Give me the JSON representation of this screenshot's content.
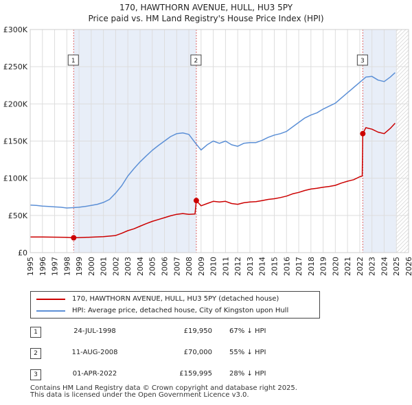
{
  "title_line1": "170, HAWTHORN AVENUE, HULL, HU3 5PY",
  "title_line2": "Price paid vs. HM Land Registry's House Price Index (HPI)",
  "colors": {
    "price_paid": "#cc0000",
    "hpi": "#5b8fd6",
    "shade": "#e8eef8",
    "vline": "#e06666"
  },
  "chart_data": {
    "type": "line",
    "title": "170, HAWTHORN AVENUE, HULL, HU3 5PY — Price paid vs. HM Land Registry's House Price Index (HPI)",
    "xlim": [
      1995,
      2026
    ],
    "ylim": [
      0,
      300000
    ],
    "x_ticks": [
      "1995",
      "1996",
      "1997",
      "1998",
      "1999",
      "2000",
      "2001",
      "2002",
      "2003",
      "2004",
      "2005",
      "2006",
      "2007",
      "2008",
      "2009",
      "2010",
      "2011",
      "2012",
      "2013",
      "2014",
      "2015",
      "2016",
      "2017",
      "2018",
      "2019",
      "2020",
      "2021",
      "2022",
      "2023",
      "2024",
      "2025",
      "2026"
    ],
    "y_ticks": [
      {
        "value": 0,
        "label": "£0"
      },
      {
        "value": 50000,
        "label": "£50K"
      },
      {
        "value": 100000,
        "label": "£100K"
      },
      {
        "value": 150000,
        "label": "£150K"
      },
      {
        "value": 200000,
        "label": "£200K"
      },
      {
        "value": 250000,
        "label": "£250K"
      },
      {
        "value": 300000,
        "label": "£300K"
      }
    ],
    "shaded_ranges": [
      [
        1998.56,
        2008.61
      ],
      [
        2022.25,
        2024.97
      ]
    ],
    "hatched_range": [
      2024.97,
      2026
    ],
    "series": [
      {
        "name": "HPI: Average price, detached house, City of Kingston upon Hull",
        "x": [
          1995.0,
          1995.5,
          1996.0,
          1996.5,
          1997.0,
          1997.5,
          1998.0,
          1998.5,
          1999.0,
          1999.5,
          2000.0,
          2000.5,
          2001.0,
          2001.5,
          2002.0,
          2002.5,
          2003.0,
          2003.5,
          2004.0,
          2004.5,
          2005.0,
          2005.5,
          2006.0,
          2006.5,
          2007.0,
          2007.5,
          2008.0,
          2008.5,
          2009.0,
          2009.5,
          2010.0,
          2010.5,
          2011.0,
          2011.5,
          2012.0,
          2012.5,
          2013.0,
          2013.5,
          2014.0,
          2014.5,
          2015.0,
          2015.5,
          2016.0,
          2016.5,
          2017.0,
          2017.5,
          2018.0,
          2018.5,
          2019.0,
          2019.5,
          2020.0,
          2020.5,
          2021.0,
          2021.5,
          2022.0,
          2022.5,
          2023.0,
          2023.5,
          2024.0,
          2024.5,
          2024.9
        ],
        "values": [
          64000,
          63500,
          62500,
          62000,
          61500,
          61000,
          60000,
          60500,
          61000,
          62000,
          63500,
          65000,
          67500,
          71500,
          80000,
          90000,
          103000,
          113000,
          122000,
          130000,
          137500,
          144000,
          150000,
          156000,
          160000,
          161000,
          159000,
          148000,
          138000,
          145000,
          150000,
          147000,
          150000,
          145000,
          143000,
          147000,
          148000,
          148000,
          151000,
          155000,
          158000,
          160000,
          163000,
          169000,
          175000,
          181000,
          185000,
          188000,
          193000,
          197000,
          201000,
          208000,
          215000,
          222000,
          229000,
          236000,
          237000,
          232000,
          230000,
          236000,
          242000
        ]
      },
      {
        "name": "170, HAWTHORN AVENUE, HULL, HU3 5PY (detached house)",
        "x": [
          1995.0,
          1996.0,
          1997.0,
          1998.0,
          1998.56,
          1999.0,
          2000.0,
          2001.0,
          2002.0,
          2002.5,
          2003.0,
          2003.5,
          2004.0,
          2004.5,
          2005.0,
          2005.5,
          2006.0,
          2006.5,
          2007.0,
          2007.5,
          2008.0,
          2008.5,
          2008.61,
          2009.0,
          2009.5,
          2010.0,
          2010.5,
          2011.0,
          2011.5,
          2012.0,
          2012.5,
          2013.0,
          2013.5,
          2014.0,
          2014.5,
          2015.0,
          2015.5,
          2016.0,
          2016.5,
          2017.0,
          2017.5,
          2018.0,
          2018.5,
          2019.0,
          2019.5,
          2020.0,
          2020.5,
          2021.0,
          2021.5,
          2022.0,
          2022.2,
          2022.25,
          2022.5,
          2023.0,
          2023.5,
          2024.0,
          2024.5,
          2024.9
        ],
        "values": [
          21000,
          21000,
          20800,
          20500,
          19950,
          20200,
          20800,
          21500,
          23000,
          26000,
          29500,
          32000,
          35500,
          39000,
          42000,
          44500,
          47000,
          49500,
          51500,
          52500,
          51500,
          52000,
          70000,
          63000,
          66000,
          69000,
          68000,
          69000,
          66000,
          65000,
          67000,
          68000,
          68500,
          70000,
          71500,
          72500,
          74000,
          76000,
          79000,
          81000,
          83500,
          85500,
          86500,
          88000,
          89000,
          90500,
          93500,
          96000,
          98000,
          102000,
          103000,
          159995,
          168000,
          166000,
          162000,
          160000,
          167000,
          174000
        ]
      }
    ],
    "sales": [
      {
        "id": "1",
        "x": 1998.56,
        "value": 19950
      },
      {
        "id": "2",
        "x": 2008.61,
        "value": 70000
      },
      {
        "id": "3",
        "x": 2022.25,
        "value": 159995
      }
    ]
  },
  "legend": {
    "price_paid": "170, HAWTHORN AVENUE, HULL, HU3 5PY (detached house)",
    "hpi": "HPI: Average price, detached house, City of Kingston upon Hull"
  },
  "transactions": [
    {
      "id": "1",
      "date": "24-JUL-1998",
      "price": "£19,950",
      "hpi": "67% ↓ HPI"
    },
    {
      "id": "2",
      "date": "11-AUG-2008",
      "price": "£70,000",
      "hpi": "55% ↓ HPI"
    },
    {
      "id": "3",
      "date": "01-APR-2022",
      "price": "£159,995",
      "hpi": "28% ↓ HPI"
    }
  ],
  "footer": {
    "line1": "Contains HM Land Registry data © Crown copyright and database right 2025.",
    "line2": "This data is licensed under the Open Government Licence v3.0."
  }
}
